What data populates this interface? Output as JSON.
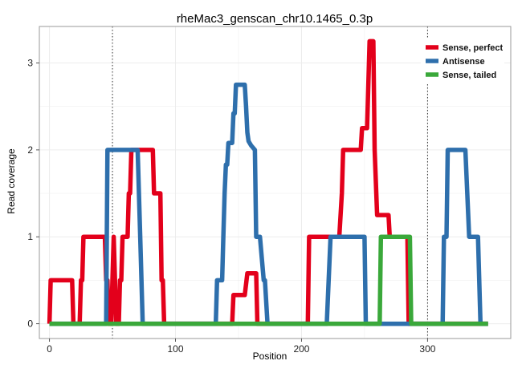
{
  "chart_data": {
    "type": "line",
    "title": "rheMac3_genscan_chr10.1465_0.3p",
    "xlabel": "Position",
    "ylabel": "Read coverage",
    "xlim": [
      -8,
      366
    ],
    "ylim": [
      -0.17,
      3.42
    ],
    "x_ticks": [
      0,
      100,
      200,
      300
    ],
    "y_ticks": [
      0,
      1,
      2,
      3
    ],
    "grid": true,
    "legend_position": "top-right",
    "vlines": [
      50,
      300
    ],
    "colors": {
      "sense_perfect": "#e3001b",
      "antisense": "#2e6fac",
      "sense_tailed": "#3aa83a",
      "grid": "#ececec",
      "border": "#9a9a9a"
    },
    "series": [
      {
        "name": "Sense, perfect",
        "color": "#e3001b",
        "points": [
          [
            0,
            0
          ],
          [
            1,
            0.5
          ],
          [
            18,
            0.5
          ],
          [
            19,
            0
          ],
          [
            24,
            0
          ],
          [
            25,
            0.5
          ],
          [
            26,
            0.5
          ],
          [
            27,
            1
          ],
          [
            44,
            1
          ],
          [
            45,
            0.5
          ],
          [
            46,
            0.5
          ],
          [
            47,
            0
          ],
          [
            49,
            0
          ],
          [
            50,
            0.5
          ],
          [
            51,
            1
          ],
          [
            52,
            0.5
          ],
          [
            53,
            0
          ],
          [
            54,
            0
          ],
          [
            55,
            0
          ],
          [
            56,
            0.5
          ],
          [
            57,
            0.5
          ],
          [
            58,
            1
          ],
          [
            62,
            1
          ],
          [
            63,
            1.5
          ],
          [
            64,
            1.5
          ],
          [
            65,
            2
          ],
          [
            82,
            2
          ],
          [
            83,
            1.5
          ],
          [
            88,
            1.5
          ],
          [
            89,
            0.5
          ],
          [
            90,
            0.5
          ],
          [
            91,
            0
          ],
          [
            140,
            0
          ],
          [
            145,
            0
          ],
          [
            146,
            0.33
          ],
          [
            155,
            0.33
          ],
          [
            157,
            0.58
          ],
          [
            163,
            0.58
          ],
          [
            164,
            0.58
          ],
          [
            165,
            0
          ],
          [
            205,
            0
          ],
          [
            206,
            1
          ],
          [
            222,
            1
          ],
          [
            230,
            1
          ],
          [
            232,
            1.5
          ],
          [
            233,
            2
          ],
          [
            247,
            2
          ],
          [
            248,
            2.25
          ],
          [
            252,
            2.25
          ],
          [
            254,
            3.25
          ],
          [
            257,
            3.25
          ],
          [
            258,
            2
          ],
          [
            260,
            1.25
          ],
          [
            269,
            1.25
          ],
          [
            270,
            1
          ],
          [
            284,
            1
          ],
          [
            285,
            0
          ],
          [
            310,
            0
          ],
          [
            348,
            0
          ]
        ]
      },
      {
        "name": "Antisense",
        "color": "#2e6fac",
        "points": [
          [
            0,
            0
          ],
          [
            45,
            0
          ],
          [
            46,
            2
          ],
          [
            70,
            2
          ],
          [
            71,
            1.5
          ],
          [
            72,
            1
          ],
          [
            74,
            0
          ],
          [
            132,
            0
          ],
          [
            133,
            0.5
          ],
          [
            137,
            0.5
          ],
          [
            138,
            1
          ],
          [
            139,
            1.5
          ],
          [
            140,
            1.83
          ],
          [
            141,
            1.83
          ],
          [
            142,
            2.08
          ],
          [
            145,
            2.08
          ],
          [
            146,
            2.42
          ],
          [
            147,
            2.42
          ],
          [
            148,
            2.75
          ],
          [
            155,
            2.75
          ],
          [
            156,
            2.5
          ],
          [
            157,
            2.2
          ],
          [
            158,
            2.1
          ],
          [
            160,
            2.05
          ],
          [
            163,
            2.0
          ],
          [
            164,
            1.0
          ],
          [
            167,
            1.0
          ],
          [
            170,
            0.5
          ],
          [
            171,
            0.5
          ],
          [
            173,
            0
          ],
          [
            220,
            0
          ],
          [
            223,
            1
          ],
          [
            250,
            1
          ],
          [
            251,
            0
          ],
          [
            312,
            0
          ],
          [
            313,
            1
          ],
          [
            315,
            1
          ],
          [
            316,
            2
          ],
          [
            330,
            2
          ],
          [
            333,
            1
          ],
          [
            340,
            1
          ],
          [
            342,
            0
          ],
          [
            348,
            0
          ]
        ]
      },
      {
        "name": "Sense, tailed",
        "color": "#3aa83a",
        "points": [
          [
            0,
            0
          ],
          [
            262,
            0
          ],
          [
            263,
            1
          ],
          [
            286,
            1
          ],
          [
            287,
            0
          ],
          [
            348,
            0
          ]
        ]
      }
    ]
  }
}
